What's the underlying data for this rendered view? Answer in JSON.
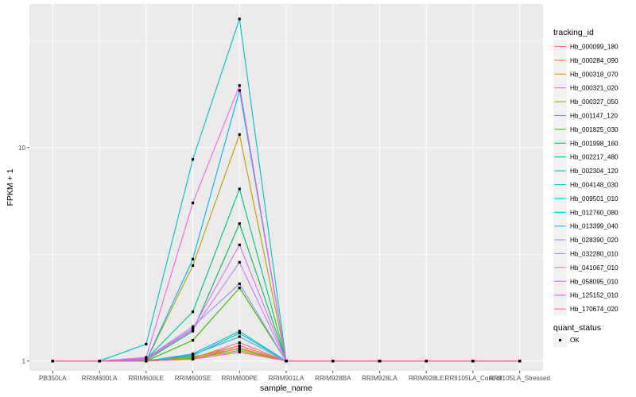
{
  "chart_data": {
    "type": "line",
    "xlabel": "sample_name",
    "ylabel": "FPKM + 1",
    "y_scale": "log10",
    "ylim": [
      0.9,
      47
    ],
    "y_ticks": [
      1,
      10
    ],
    "y_tick_labels": [
      "1",
      "10"
    ],
    "grid": true,
    "legend_placement": "right",
    "categories": [
      "PB350LA",
      "RRIM600LA",
      "RRIM600LE",
      "RRIM600SE",
      "RRIM600PE",
      "RRIM901LA",
      "RRIM928BA",
      "RRIM928LA",
      "RRIM928LE",
      "RRII105LA_Control",
      "RRII105LA_Stressed"
    ],
    "legend_title": "tracking_id",
    "series": [
      {
        "name": "Hb_000099_180",
        "color": "#F8766D",
        "values": [
          1,
          1,
          1.01,
          1.03,
          1.22,
          1,
          1,
          1,
          1,
          1,
          1
        ]
      },
      {
        "name": "Hb_000284_090",
        "color": "#EE8043",
        "values": [
          1,
          1,
          1.0,
          1.02,
          1.15,
          1,
          1,
          1,
          1,
          1,
          1
        ]
      },
      {
        "name": "Hb_000318_070",
        "color": "#DE8C00",
        "values": [
          1,
          1,
          1.0,
          1.04,
          1.18,
          1,
          1,
          1,
          1,
          1,
          1
        ]
      },
      {
        "name": "Hb_000321_020",
        "color": "#C59900",
        "values": [
          1,
          1,
          1.0,
          2.8,
          11.5,
          1,
          1,
          1,
          1,
          1,
          1
        ]
      },
      {
        "name": "Hb_000327_050",
        "color": "#A3A500",
        "values": [
          1,
          1,
          1.0,
          1.05,
          1.14,
          1,
          1,
          1,
          1,
          1,
          1
        ]
      },
      {
        "name": "Hb_001147_120",
        "color": "#7CAE00",
        "values": [
          1,
          1,
          1.0,
          1.03,
          1.12,
          1,
          1,
          1,
          1,
          1,
          1
        ]
      },
      {
        "name": "Hb_001825_030",
        "color": "#39B600",
        "values": [
          1,
          1,
          1.0,
          1.25,
          2.2,
          1,
          1,
          1,
          1,
          1,
          1
        ]
      },
      {
        "name": "Hb_001998_160",
        "color": "#00BB4E",
        "values": [
          1,
          1,
          1.01,
          1.38,
          4.4,
          1,
          1,
          1,
          1,
          1,
          1
        ]
      },
      {
        "name": "Hb_002217_480",
        "color": "#00BF7D",
        "values": [
          1,
          1,
          1.02,
          1.7,
          6.4,
          1,
          1,
          1,
          1,
          1,
          1
        ]
      },
      {
        "name": "Hb_002304_120",
        "color": "#00C1A3",
        "values": [
          1,
          1,
          1.0,
          1.06,
          1.35,
          1,
          1,
          1,
          1,
          1,
          1
        ]
      },
      {
        "name": "Hb_004148_030",
        "color": "#00BFC4",
        "values": [
          1,
          1,
          1.2,
          8.8,
          40,
          1,
          1,
          1,
          1,
          1,
          1
        ]
      },
      {
        "name": "Hb_009501_010",
        "color": "#00BAE0",
        "values": [
          1,
          1,
          1.0,
          1.08,
          1.38,
          1,
          1,
          1,
          1,
          1,
          1
        ]
      },
      {
        "name": "Hb_012760_080",
        "color": "#00B0F6",
        "values": [
          1,
          1,
          1.0,
          3.0,
          18.5,
          1,
          1,
          1,
          1,
          1,
          1
        ]
      },
      {
        "name": "Hb_013399_040",
        "color": "#35A2FF",
        "values": [
          1,
          1,
          1.0,
          1.07,
          1.3,
          1,
          1,
          1,
          1,
          1,
          1
        ]
      },
      {
        "name": "Hb_028390_020",
        "color": "#9590FF",
        "values": [
          1,
          1,
          1.03,
          1.45,
          2.3,
          1,
          1,
          1,
          1,
          1,
          1
        ]
      },
      {
        "name": "Hb_032280_010",
        "color": "#C77CFF",
        "values": [
          1,
          1,
          1.02,
          1.4,
          2.9,
          1,
          1,
          1,
          1,
          1,
          1
        ]
      },
      {
        "name": "Hb_041067_010",
        "color": "#E76BF3",
        "values": [
          1,
          1,
          1.03,
          1.42,
          3.5,
          1,
          1,
          1,
          1,
          1,
          1
        ]
      },
      {
        "name": "Hb_058095_010",
        "color": "#FA62DB",
        "values": [
          1,
          1,
          1.04,
          5.5,
          19.5,
          1,
          1,
          1,
          1,
          1,
          1
        ]
      },
      {
        "name": "Hb_125152_010",
        "color": "#FF62BC",
        "values": [
          1,
          1,
          1.0,
          1.02,
          1.1,
          1,
          1,
          1,
          1,
          1,
          1
        ]
      },
      {
        "name": "Hb_170674_020",
        "color": "#FF6C91",
        "values": [
          1,
          1,
          1.0,
          1.02,
          1.18,
          1,
          1,
          1,
          1,
          1,
          1
        ]
      }
    ],
    "point_legend_title": "quant_status",
    "point_legend_label": "OK"
  }
}
